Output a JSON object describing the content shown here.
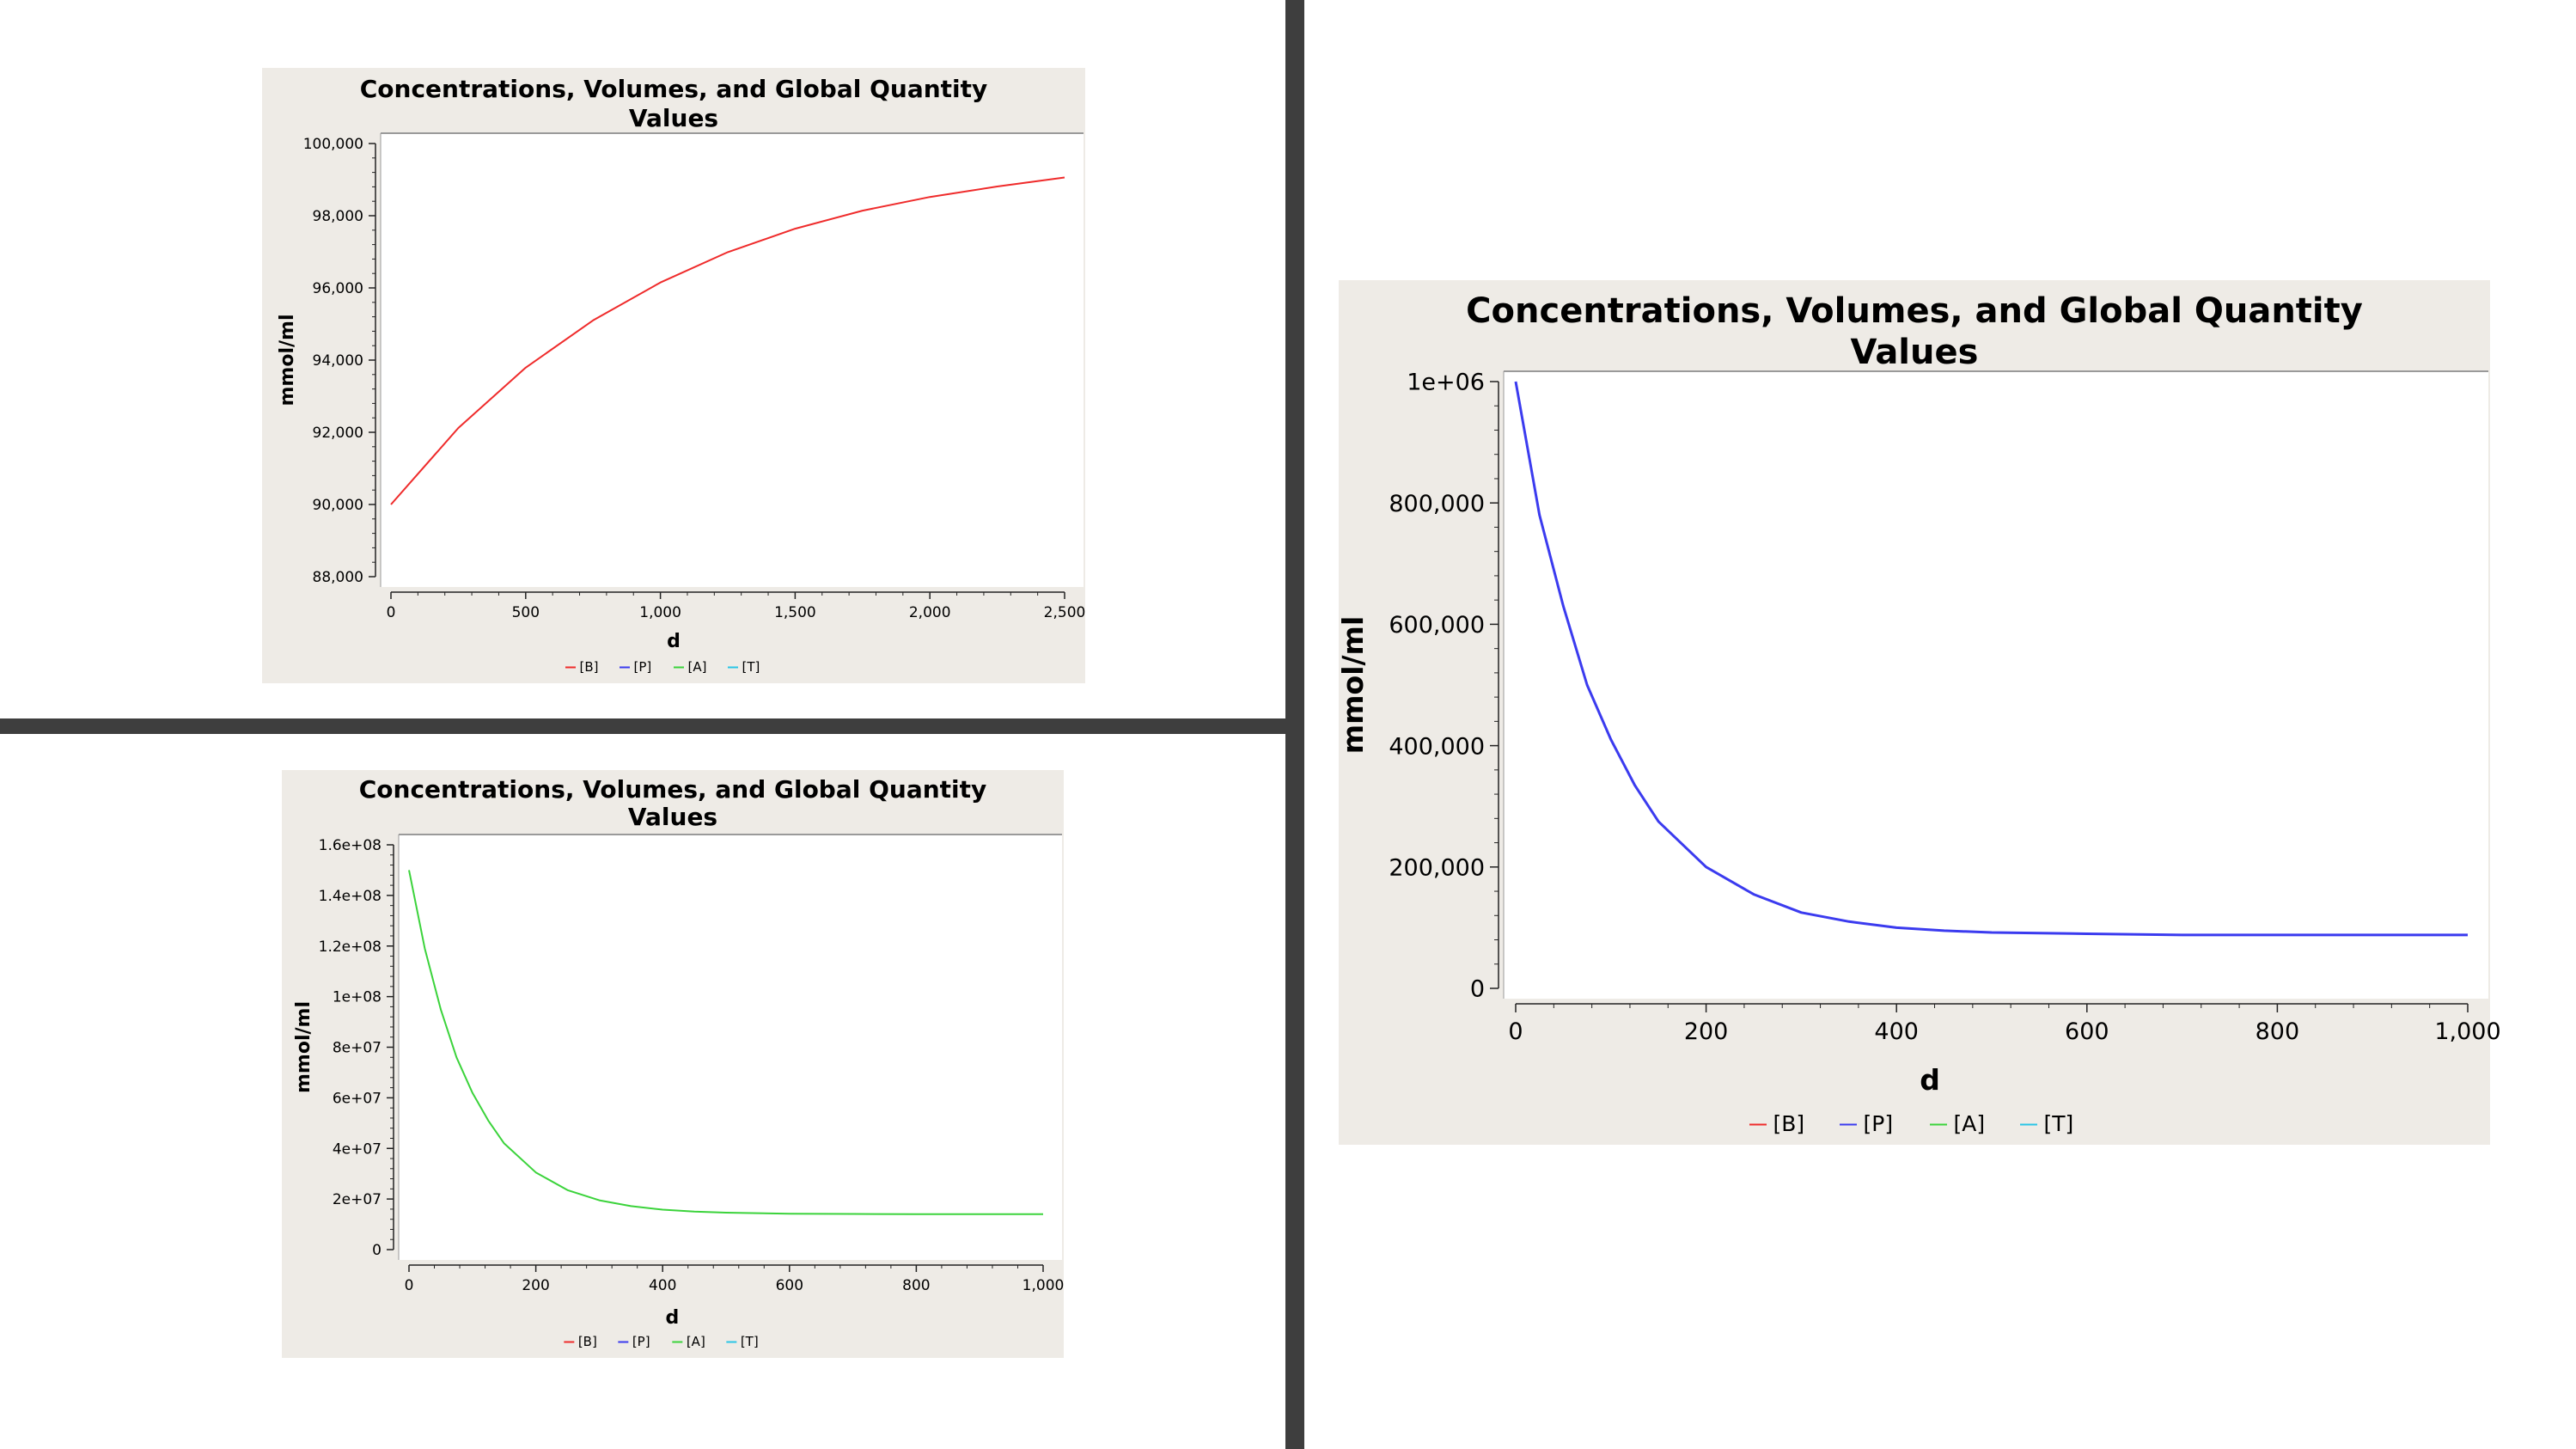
{
  "chart_data": [
    {
      "type": "line",
      "title": "Concentrations, Volumes, and Global Quantity Values",
      "title_lines": [
        "Concentrations, Volumes, and Global Quantity",
        "Values"
      ],
      "xlabel": "d",
      "ylabel": "mmol/ml",
      "xlim": [
        0,
        2500
      ],
      "ylim": [
        88000,
        100000
      ],
      "x_ticks": [
        0,
        500,
        1000,
        1500,
        2000,
        2500
      ],
      "x_tick_labels": [
        "0",
        "500",
        "1,000",
        "1,500",
        "2,000",
        "2,500"
      ],
      "y_ticks": [
        88000,
        90000,
        92000,
        94000,
        96000,
        98000,
        100000
      ],
      "y_tick_labels": [
        "88,000",
        "90,000",
        "92,000",
        "94,000",
        "96,000",
        "98,000",
        "100,000"
      ],
      "legend": [
        "[B]",
        "[P]",
        "[A]",
        "[T]"
      ],
      "legend_colors": [
        "#ef2b2b",
        "#3b3bef",
        "#3bd33b",
        "#29c5e6"
      ],
      "legend_placement": "bottom",
      "grid": false,
      "series": [
        {
          "name": "[B]",
          "color": "#ef2b2b",
          "x": [
            0,
            250,
            500,
            750,
            1000,
            1250,
            1500,
            1750,
            2000,
            2250,
            2500
          ],
          "y": [
            90000,
            92120,
            93790,
            95100,
            96150,
            96990,
            97640,
            98140,
            98520,
            98810,
            99060
          ]
        }
      ]
    },
    {
      "type": "line",
      "title": "Concentrations, Volumes, and Global Quantity Values",
      "title_lines": [
        "Concentrations, Volumes, and Global Quantity",
        "Values"
      ],
      "xlabel": "d",
      "ylabel": "mmol/ml",
      "xlim": [
        0,
        1000
      ],
      "ylim": [
        0,
        160000000
      ],
      "x_ticks": [
        0,
        200,
        400,
        600,
        800,
        1000
      ],
      "x_tick_labels": [
        "0",
        "200",
        "400",
        "600",
        "800",
        "1,000"
      ],
      "y_ticks": [
        0,
        20000000,
        40000000,
        60000000,
        80000000,
        100000000,
        120000000,
        140000000,
        160000000
      ],
      "y_tick_labels": [
        "0",
        "2e+07",
        "4e+07",
        "6e+07",
        "8e+07",
        "1e+08",
        "1.2e+08",
        "1.4e+08",
        "1.6e+08"
      ],
      "legend": [
        "[B]",
        "[P]",
        "[A]",
        "[T]"
      ],
      "legend_colors": [
        "#ef2b2b",
        "#3b3bef",
        "#3bd33b",
        "#29c5e6"
      ],
      "legend_placement": "bottom",
      "grid": false,
      "series": [
        {
          "name": "[A]",
          "color": "#3bd33b",
          "x": [
            0,
            25,
            50,
            75,
            100,
            125,
            150,
            200,
            250,
            300,
            350,
            400,
            450,
            500,
            600,
            700,
            800,
            900,
            1000
          ],
          "y": [
            150000000,
            119000000,
            95000000,
            76000000,
            62000000,
            51000000,
            42000000,
            30500000,
            23500000,
            19500000,
            17200000,
            15800000,
            15000000,
            14600000,
            14200000,
            14100000,
            14000000,
            14000000,
            14000000
          ]
        }
      ]
    },
    {
      "type": "line",
      "title": "Concentrations, Volumes, and Global Quantity Values",
      "title_lines": [
        "Concentrations, Volumes, and Global Quantity",
        "Values"
      ],
      "xlabel": "d",
      "ylabel": "mmol/ml",
      "xlim": [
        0,
        1000
      ],
      "ylim": [
        0,
        1000000
      ],
      "x_ticks": [
        0,
        200,
        400,
        600,
        800,
        1000
      ],
      "x_tick_labels": [
        "0",
        "200",
        "400",
        "600",
        "800",
        "1,000"
      ],
      "y_ticks": [
        0,
        200000,
        400000,
        600000,
        800000,
        1000000
      ],
      "y_tick_labels": [
        "0",
        "200,000",
        "400,000",
        "600,000",
        "800,000",
        "1e+06"
      ],
      "legend": [
        "[B]",
        "[P]",
        "[A]",
        "[T]"
      ],
      "legend_colors": [
        "#ef2b2b",
        "#3b3bef",
        "#3bd33b",
        "#29c5e6"
      ],
      "legend_placement": "bottom",
      "grid": false,
      "series": [
        {
          "name": "[P]",
          "color": "#3b3bef",
          "x": [
            0,
            25,
            50,
            75,
            100,
            125,
            150,
            200,
            250,
            300,
            350,
            400,
            450,
            500,
            600,
            700,
            800,
            900,
            1000
          ],
          "y": [
            1000000,
            780000,
            630000,
            500000,
            410000,
            335000,
            275000,
            200000,
            155000,
            125000,
            110000,
            100000,
            95000,
            92000,
            90000,
            88000,
            88000,
            88000,
            88000
          ]
        }
      ]
    }
  ]
}
